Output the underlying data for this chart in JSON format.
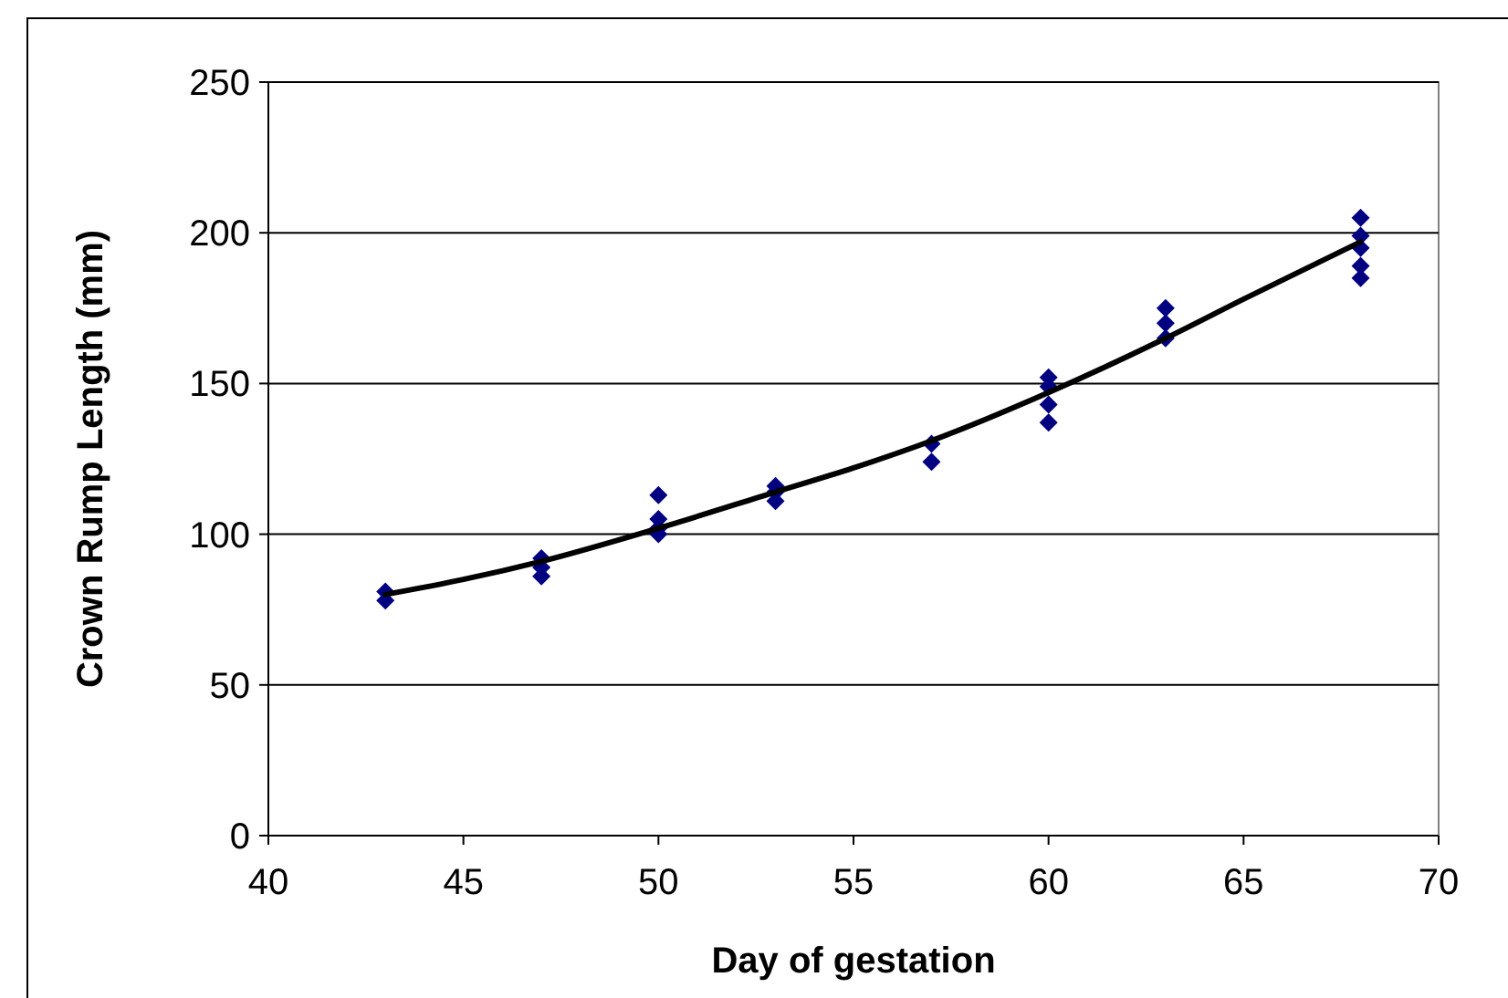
{
  "chart_data": {
    "type": "scatter",
    "xlabel": "Day of gestation",
    "ylabel": "Crown Rump Length (mm)",
    "xlim": [
      40,
      70
    ],
    "xticks": [
      40,
      45,
      50,
      55,
      60,
      65,
      70
    ],
    "ylim": [
      0,
      250
    ],
    "yticks": [
      0,
      50,
      100,
      150,
      200,
      250
    ],
    "grid": "y",
    "marker": "diamond",
    "series": [
      {
        "color": "#000080",
        "x": [
          43,
          43,
          47,
          47,
          47,
          50,
          50,
          50,
          50,
          53,
          53,
          53,
          57,
          57,
          60,
          60,
          60,
          60,
          63,
          63,
          63,
          68,
          68,
          68,
          68,
          68
        ],
        "values": [
          81,
          78,
          92,
          89,
          86,
          113,
          105,
          102,
          100,
          116,
          114,
          111,
          130,
          124,
          152,
          149,
          143,
          137,
          175,
          170,
          165,
          205,
          199,
          195,
          189,
          185
        ]
      },
      {
        "type": "line",
        "color": "#000000",
        "marker": "none",
        "x": [
          43,
          45,
          47,
          50,
          53,
          55,
          57,
          60,
          63,
          65,
          68
        ],
        "values": [
          80,
          85,
          91,
          102,
          114,
          122,
          131,
          147,
          165,
          178,
          197
        ]
      }
    ]
  }
}
